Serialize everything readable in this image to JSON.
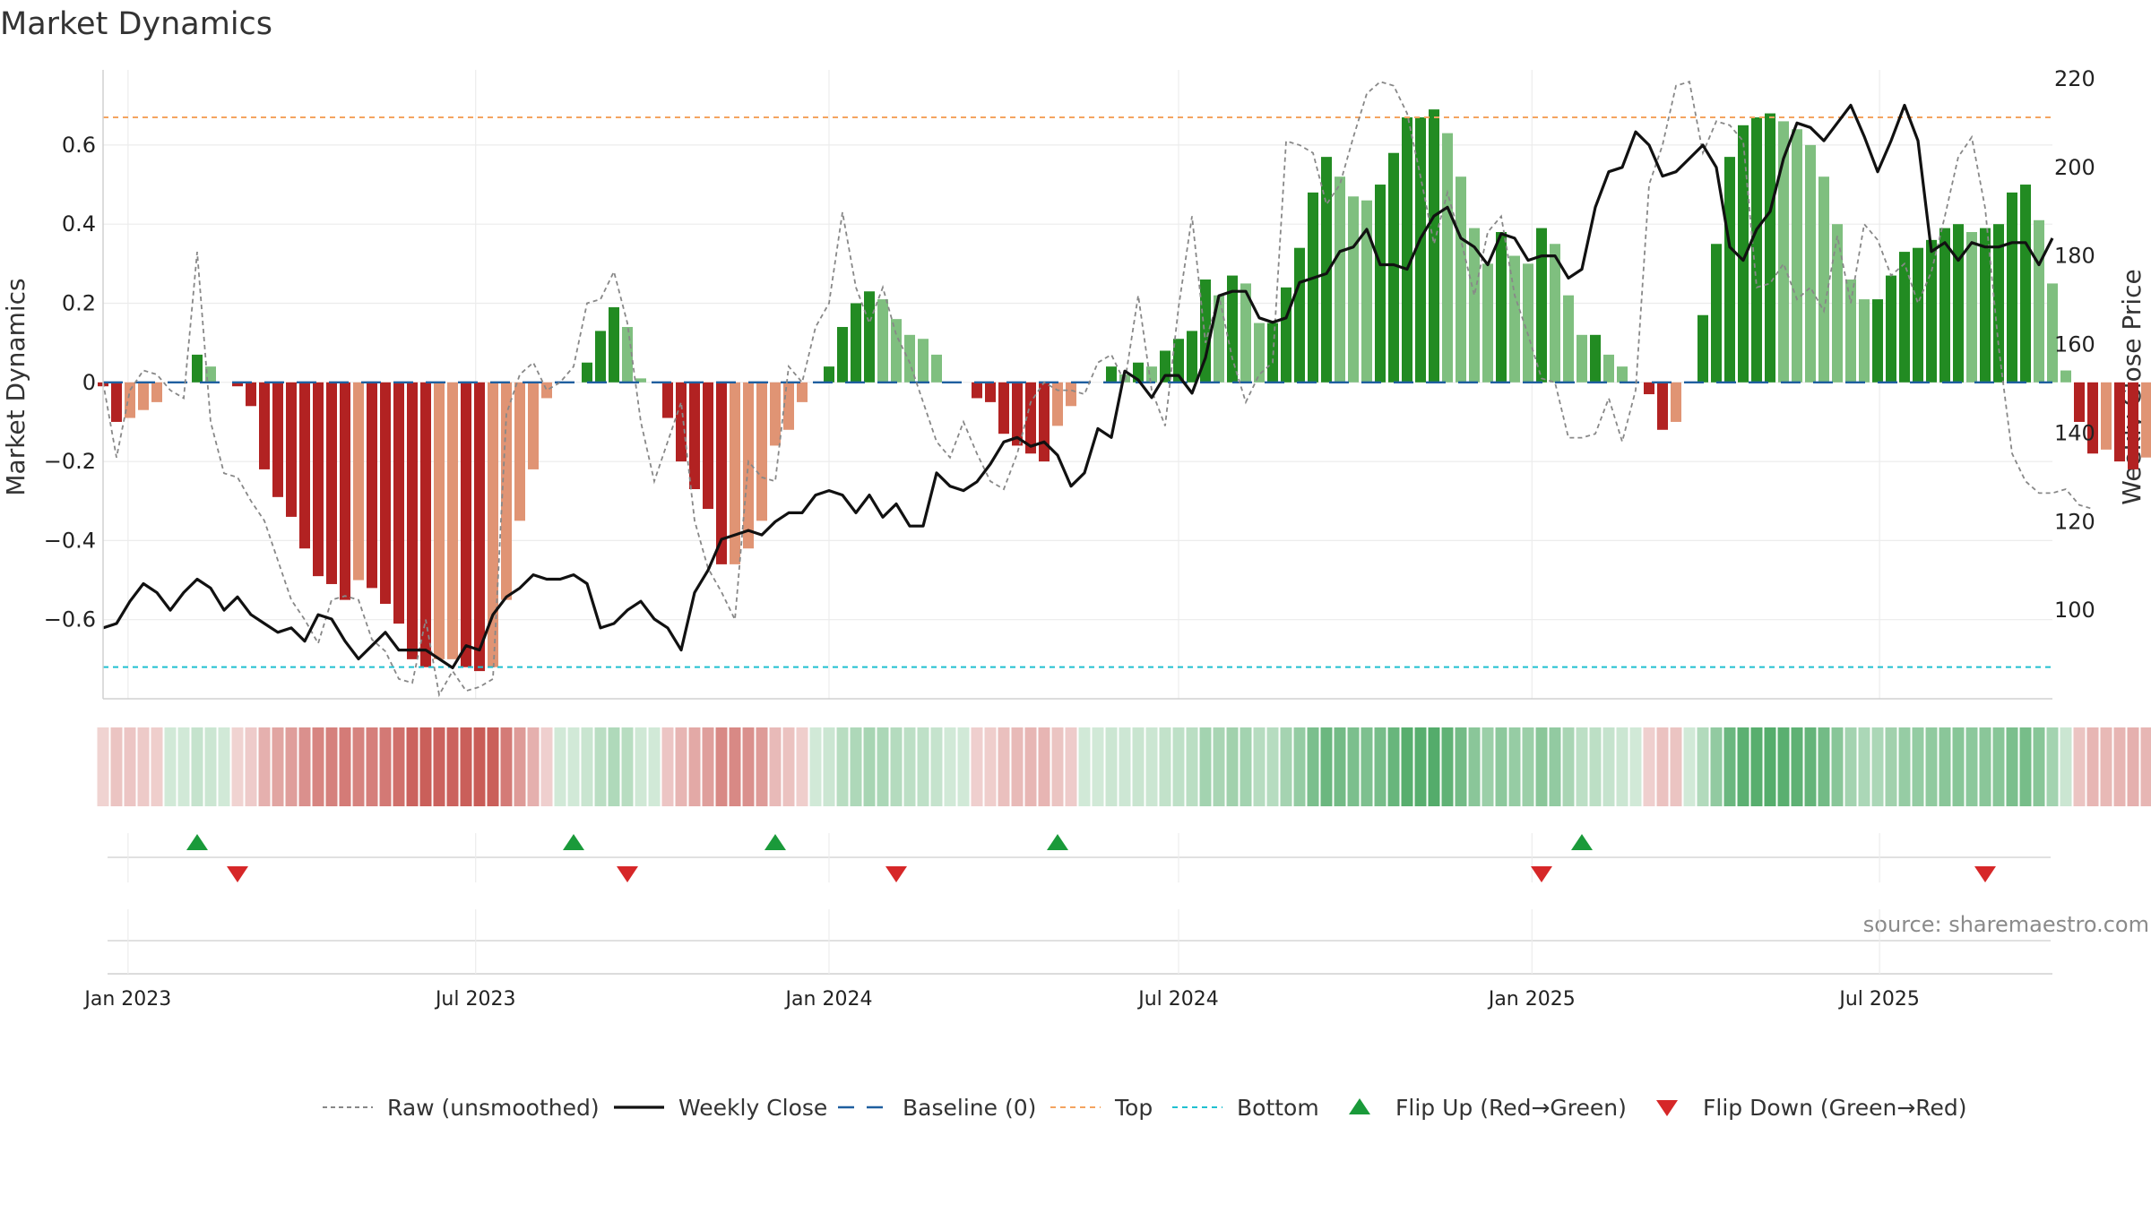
{
  "chart_data": {
    "type": "bar",
    "title": "Market Dynamics",
    "ylabel_left": "Market Dynamics",
    "ylabel_right": "Weekly Close Price",
    "ylim_left": [
      -0.8,
      0.79
    ],
    "ylim_right": [
      80,
      222
    ],
    "xlim": [
      "2022-12-19",
      "2025-09-29"
    ],
    "left_ticks": [
      {
        "v": 0.6,
        "label": "0.6"
      },
      {
        "v": 0.4,
        "label": "0.4"
      },
      {
        "v": 0.2,
        "label": "0.2"
      },
      {
        "v": 0,
        "label": "0"
      },
      {
        "v": -0.2,
        "label": "−0.2"
      },
      {
        "v": -0.4,
        "label": "−0.4"
      },
      {
        "v": -0.6,
        "label": "−0.6"
      }
    ],
    "right_ticks": [
      {
        "v": 220,
        "label": "220"
      },
      {
        "v": 200,
        "label": "200"
      },
      {
        "v": 180,
        "label": "180"
      },
      {
        "v": 160,
        "label": "160"
      },
      {
        "v": 140,
        "label": "140"
      },
      {
        "v": 120,
        "label": "120"
      },
      {
        "v": 100,
        "label": "100"
      }
    ],
    "x_ticks": [
      {
        "date": "2023-01-01",
        "label": "Jan 2023"
      },
      {
        "date": "2023-07-01",
        "label": "Jul 2023"
      },
      {
        "date": "2024-01-01",
        "label": "Jan 2024"
      },
      {
        "date": "2024-07-01",
        "label": "Jul 2024"
      },
      {
        "date": "2025-01-01",
        "label": "Jan 2025"
      },
      {
        "date": "2025-07-01",
        "label": "Jul 2025"
      }
    ],
    "start_date": "2022-12-19",
    "week_step_days": 7,
    "smoothed": [
      -0.01,
      -0.1,
      -0.09,
      -0.07,
      -0.05,
      0,
      0,
      0.07,
      0.04,
      0,
      -0.01,
      -0.06,
      -0.22,
      -0.29,
      -0.34,
      -0.42,
      -0.49,
      -0.51,
      -0.55,
      -0.5,
      -0.52,
      -0.56,
      -0.61,
      -0.7,
      -0.72,
      -0.7,
      -0.7,
      -0.72,
      -0.73,
      -0.72,
      -0.55,
      -0.35,
      -0.22,
      -0.04,
      0,
      0,
      0.05,
      0.13,
      0.19,
      0.14,
      0.01,
      0,
      -0.09,
      -0.2,
      -0.27,
      -0.32,
      -0.46,
      -0.46,
      -0.42,
      -0.35,
      -0.16,
      -0.12,
      -0.05,
      0,
      0.04,
      0.14,
      0.2,
      0.23,
      0.21,
      0.16,
      0.12,
      0.11,
      0.07,
      0,
      0,
      -0.04,
      -0.05,
      -0.13,
      -0.16,
      -0.18,
      -0.2,
      -0.11,
      -0.06,
      0,
      0,
      0.04,
      0.02,
      0.05,
      0.04,
      0.08,
      0.11,
      0.13,
      0.26,
      0.22,
      0.27,
      0.25,
      0.15,
      0.15,
      0.24,
      0.34,
      0.48,
      0.57,
      0.52,
      0.47,
      0.46,
      0.5,
      0.58,
      0.67,
      0.67,
      0.69,
      0.63,
      0.52,
      0.39,
      0.3,
      0.38,
      0.32,
      0.3,
      0.39,
      0.35,
      0.22,
      0.12,
      0.12,
      0.07,
      0.04,
      0,
      -0.03,
      -0.12,
      -0.1,
      0,
      0.17,
      0.35,
      0.57,
      0.65,
      0.67,
      0.68,
      0.66,
      0.64,
      0.6,
      0.52,
      0.4,
      0.26,
      0.21,
      0.21,
      0.27,
      0.33,
      0.34,
      0.36,
      0.39,
      0.4,
      0.38,
      0.39,
      0.4,
      0.48,
      0.5,
      0.41,
      0.25,
      0.03,
      -0.1,
      -0.18,
      -0.17,
      -0.2,
      -0.22,
      -0.19
    ],
    "raw": [
      0,
      -0.19,
      -0.02,
      0.03,
      0.02,
      -0.02,
      -0.04,
      0.33,
      -0.1,
      -0.23,
      -0.24,
      -0.3,
      -0.35,
      -0.45,
      -0.55,
      -0.6,
      -0.66,
      -0.55,
      -0.54,
      -0.55,
      -0.65,
      -0.68,
      -0.75,
      -0.76,
      -0.6,
      -0.79,
      -0.73,
      -0.78,
      -0.77,
      -0.75,
      -0.08,
      0.02,
      0.05,
      -0.02,
      0,
      0.04,
      0.2,
      0.21,
      0.28,
      0.15,
      -0.1,
      -0.25,
      -0.15,
      -0.05,
      -0.35,
      -0.47,
      -0.53,
      -0.6,
      -0.2,
      -0.24,
      -0.25,
      0.04,
      0,
      0.14,
      0.2,
      0.43,
      0.24,
      0.15,
      0.24,
      0.12,
      0.05,
      -0.05,
      -0.15,
      -0.19,
      -0.1,
      -0.18,
      -0.25,
      -0.27,
      -0.18,
      -0.05,
      0,
      -0.02,
      -0.02,
      -0.03,
      0.05,
      0.07,
      0,
      0.22,
      -0.02,
      -0.11,
      0.19,
      0.42,
      0.1,
      0.22,
      0.06,
      -0.05,
      0.02,
      0.05,
      0.61,
      0.6,
      0.58,
      0.45,
      0.5,
      0.62,
      0.73,
      0.76,
      0.75,
      0.68,
      0.52,
      0.35,
      0.48,
      0.36,
      0.22,
      0.38,
      0.42,
      0.22,
      0.12,
      0.01,
      0,
      -0.14,
      -0.14,
      -0.13,
      -0.04,
      -0.15,
      -0.02,
      0.5,
      0.6,
      0.75,
      0.76,
      0.58,
      0.66,
      0.65,
      0.61,
      0.24,
      0.25,
      0.3,
      0.21,
      0.24,
      0.18,
      0.37,
      0.2,
      0.4,
      0.36,
      0.27,
      0.3,
      0.2,
      0.28,
      0.42,
      0.57,
      0.62,
      0.44,
      0.09,
      -0.18,
      -0.25,
      -0.28,
      -0.28,
      -0.27,
      -0.31,
      -0.32
    ],
    "weekly_close": [
      96,
      97,
      102,
      106,
      104,
      100,
      104,
      107,
      105,
      100,
      103,
      99,
      97,
      95,
      96,
      93,
      99,
      98,
      93,
      89,
      92,
      95,
      91,
      91,
      91,
      89,
      87,
      92,
      91,
      99,
      103,
      105,
      108,
      107,
      107,
      108,
      106,
      96,
      97,
      100,
      102,
      98,
      96,
      91,
      104,
      109,
      116,
      117,
      118,
      117,
      120,
      122,
      122,
      126,
      127,
      126,
      122,
      126,
      121,
      124,
      119,
      119,
      131,
      128,
      127,
      129,
      133,
      138,
      139,
      137,
      138,
      135,
      128,
      131,
      141,
      139,
      154,
      152,
      148,
      153,
      153,
      149,
      157,
      171,
      172,
      172,
      166,
      165,
      166,
      174,
      175,
      176,
      181,
      182,
      186,
      178,
      178,
      177,
      184,
      189,
      191,
      184,
      182,
      178,
      185,
      184,
      179,
      180,
      180,
      175,
      177,
      191,
      199,
      200,
      208,
      205,
      198,
      199,
      202,
      205,
      200,
      182,
      179,
      186,
      190,
      202,
      210,
      209,
      206,
      210,
      214,
      207,
      199,
      206,
      214,
      206,
      181,
      183,
      179,
      183,
      182,
      182,
      183,
      183,
      178,
      184
    ],
    "threshold_top": 0.67,
    "threshold_bottom": -0.72,
    "baseline": 0,
    "flips_up": [
      "2023-02-06",
      "2023-08-21",
      "2023-12-04",
      "2024-04-29",
      "2025-01-27"
    ],
    "flips_down": [
      "2023-02-27",
      "2023-09-18",
      "2024-02-05",
      "2025-01-06",
      "2025-08-25"
    ],
    "legend": [
      {
        "key": "raw",
        "label": "Raw (unsmoothed)"
      },
      {
        "key": "close",
        "label": "Weekly Close"
      },
      {
        "key": "baseline",
        "label": "Baseline (0)"
      },
      {
        "key": "top",
        "label": "Top"
      },
      {
        "key": "bottom",
        "label": "Bottom"
      },
      {
        "key": "flip_up",
        "label": "Flip Up (Red→Green)"
      },
      {
        "key": "flip_down",
        "label": "Flip Down (Green→Red)"
      }
    ],
    "legend_position": "bottom-center",
    "grid": true,
    "colors": {
      "bar_pos_strong": "#228b22",
      "bar_pos_weak": "#7fbf7f",
      "bar_neg_strong": "#b22222",
      "bar_neg_weak": "#e09474",
      "raw_line": "#888888",
      "close_line": "#111111",
      "baseline": "#1f5f9f",
      "top": "#f4a460",
      "bottom": "#20c0d0",
      "flip_up": "#1a9a3a",
      "flip_down": "#d62728",
      "band_green": "#2e9a4a",
      "band_red": "#c0403a"
    }
  },
  "source_text": "source: sharemaestro.com"
}
